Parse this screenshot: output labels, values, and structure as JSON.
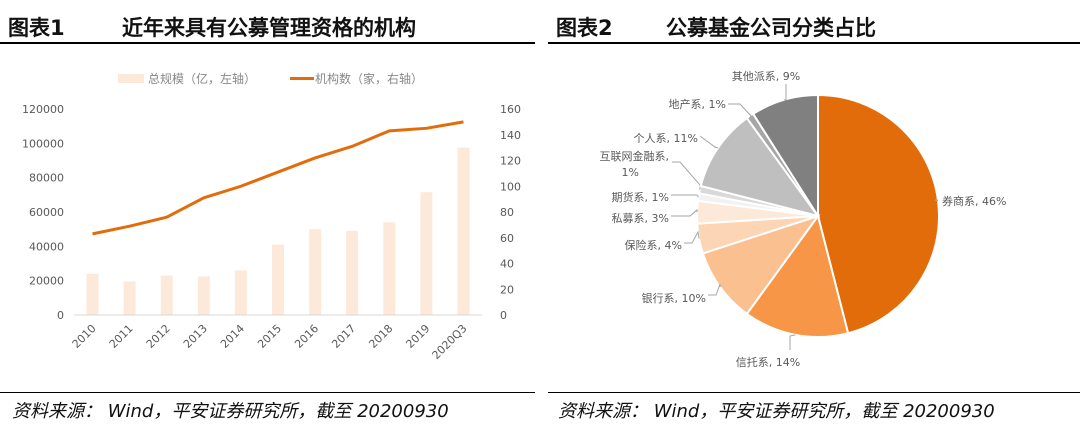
{
  "panel1": {
    "number": "图表1",
    "title": "近年来具有公募管理资格的机构",
    "source": "资料来源：  Wind，平安证券研究所，截至 20200930"
  },
  "panel2": {
    "number": "图表2",
    "title": "公募基金公司分类占比",
    "source": "资料来源：  Wind，平安证券研究所，截至 20200930"
  },
  "chart_data": [
    {
      "type": "bar+line",
      "categories": [
        "2010",
        "2011",
        "2012",
        "2013",
        "2014",
        "2015",
        "2016",
        "2017",
        "2018",
        "2019",
        "2020Q3"
      ],
      "series": [
        {
          "name": "总规模（亿，左轴）",
          "type": "bar",
          "axis": "left",
          "color": "#FDE9D9",
          "values": [
            24000,
            19500,
            23000,
            22500,
            26000,
            41000,
            50000,
            49000,
            54000,
            71500,
            97500
          ]
        },
        {
          "name": "机构数（家，右轴）",
          "type": "line",
          "axis": "right",
          "color": "#E36C0A",
          "values": [
            63,
            69,
            76,
            91,
            100,
            111,
            122,
            131,
            143,
            145,
            150
          ]
        }
      ],
      "ylim_left": [
        0,
        120000
      ],
      "yticks_left": [
        "0",
        "20000",
        "40000",
        "60000",
        "80000",
        "100000",
        "120000"
      ],
      "ylim_right": [
        0,
        160
      ],
      "yticks_right": [
        "0",
        "20",
        "40",
        "60",
        "80",
        "100",
        "120",
        "140",
        "160"
      ],
      "legend": "top",
      "grid": false
    },
    {
      "type": "pie",
      "start": "top",
      "direction": "clockwise",
      "slices": [
        {
          "label": "券商系, 46%",
          "value": 46,
          "color": "#E36C0A"
        },
        {
          "label": "信托系, 14%",
          "value": 14,
          "color": "#F79646"
        },
        {
          "label": "银行系, 10%",
          "value": 10,
          "color": "#FAC090"
        },
        {
          "label": "保险系, 4%",
          "value": 4,
          "color": "#FCD5B4"
        },
        {
          "label": "私募系, 3%",
          "value": 3,
          "color": "#FDE9D9"
        },
        {
          "label": "期货系, 1%",
          "value": 1,
          "color": "#F2F2F2"
        },
        {
          "label": "互联网金融系, 1%",
          "value": 1,
          "color": "#D9D9D9"
        },
        {
          "label": "个人系, 11%",
          "value": 11,
          "color": "#BFBFBF"
        },
        {
          "label": "地产系, 1%",
          "value": 1,
          "color": "#A6A6A6"
        },
        {
          "label": "其他派系, 9%",
          "value": 9,
          "color": "#808080"
        }
      ]
    }
  ]
}
